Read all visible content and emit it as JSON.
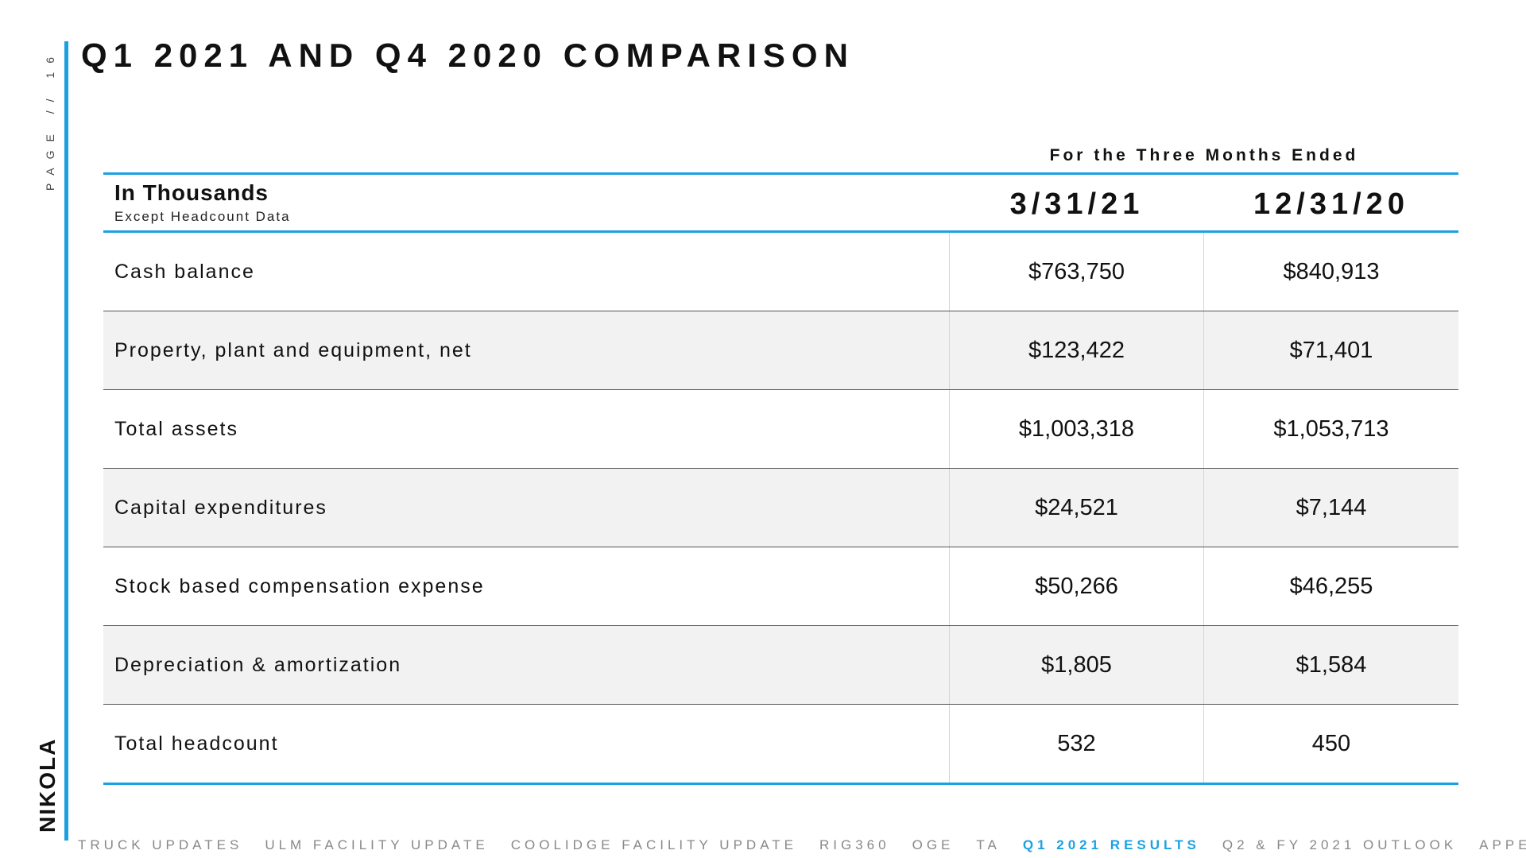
{
  "page": {
    "label": "PAGE // 16",
    "logo": "NIKOLA",
    "title": "Q1 2021 AND Q4 2020 COMPARISON"
  },
  "table": {
    "period_header": "For the Three Months Ended",
    "unit_label": "In Thousands",
    "unit_sublabel": "Except Headcount Data",
    "columns": [
      "3/31/21",
      "12/31/20"
    ],
    "rows": [
      {
        "label": "Cash balance",
        "values": [
          "$763,750",
          "$840,913"
        ]
      },
      {
        "label": "Property, plant and equipment, net",
        "values": [
          "$123,422",
          "$71,401"
        ]
      },
      {
        "label": "Total assets",
        "values": [
          "$1,003,318",
          "$1,053,713"
        ]
      },
      {
        "label": "Capital expenditures",
        "values": [
          "$24,521",
          "$7,144"
        ]
      },
      {
        "label": "Stock based compensation expense",
        "values": [
          "$50,266",
          "$46,255"
        ]
      },
      {
        "label": "Depreciation & amortization",
        "values": [
          "$1,805",
          "$1,584"
        ]
      },
      {
        "label": "Total headcount",
        "values": [
          "532",
          "450"
        ]
      }
    ]
  },
  "footer_nav": {
    "items": [
      "TRUCK UPDATES",
      "ULM FACILITY UPDATE",
      "COOLIDGE FACILITY UPDATE",
      "RIG360",
      "OGE",
      "TA",
      "Q1 2021 RESULTS",
      "Q2 & FY 2021 OUTLOOK",
      "APPENDIX"
    ],
    "active_index": 6
  },
  "colors": {
    "accent": "#1ba1e2",
    "row_alt": "#f2f2f2",
    "nav_inactive": "#888888"
  }
}
